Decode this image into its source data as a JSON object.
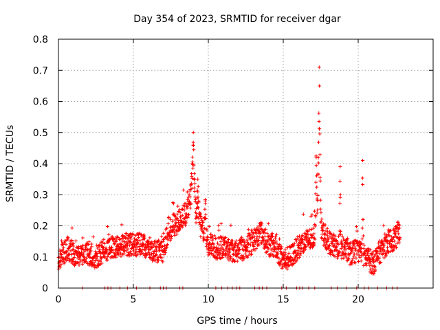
{
  "chart_data": {
    "type": "scatter",
    "title": "Day 354 of 2023, SRMTID for receiver dgar",
    "xlabel": "GPS time / hours",
    "ylabel": "SRMTID / TECUs",
    "xlim": [
      0,
      25
    ],
    "ylim": [
      0,
      0.8
    ],
    "xticks": [
      0,
      5,
      10,
      15,
      20
    ],
    "xtick_labels": [
      "0",
      "5",
      "10",
      "15",
      "20"
    ],
    "yticks": [
      0,
      0.1,
      0.2,
      0.3,
      0.4,
      0.5,
      0.6,
      0.7,
      0.8
    ],
    "ytick_labels": [
      "0",
      "0.1",
      "0.2",
      "0.3",
      "0.4",
      "0.5",
      "0.6",
      "0.7",
      "0.8"
    ],
    "grid": true,
    "marker": "plus",
    "series": [
      {
        "name": "SRMTID",
        "color": "#ff0000",
        "profile": [
          [
            0.0,
            0.09
          ],
          [
            0.3,
            0.11
          ],
          [
            0.6,
            0.13
          ],
          [
            1.0,
            0.11
          ],
          [
            1.5,
            0.1
          ],
          [
            2.0,
            0.11
          ],
          [
            2.5,
            0.1
          ],
          [
            3.0,
            0.12
          ],
          [
            3.5,
            0.13
          ],
          [
            4.0,
            0.13
          ],
          [
            4.5,
            0.14
          ],
          [
            5.0,
            0.14
          ],
          [
            5.5,
            0.14
          ],
          [
            6.0,
            0.13
          ],
          [
            6.5,
            0.12
          ],
          [
            7.0,
            0.12
          ],
          [
            7.3,
            0.18
          ],
          [
            7.6,
            0.2
          ],
          [
            8.0,
            0.21
          ],
          [
            8.5,
            0.24
          ],
          [
            8.9,
            0.3
          ],
          [
            9.3,
            0.22
          ],
          [
            9.7,
            0.18
          ],
          [
            10.0,
            0.14
          ],
          [
            10.5,
            0.13
          ],
          [
            11.0,
            0.13
          ],
          [
            11.5,
            0.12
          ],
          [
            12.0,
            0.12
          ],
          [
            12.5,
            0.13
          ],
          [
            13.0,
            0.15
          ],
          [
            13.5,
            0.18
          ],
          [
            14.0,
            0.14
          ],
          [
            14.5,
            0.13
          ],
          [
            15.0,
            0.09
          ],
          [
            15.5,
            0.1
          ],
          [
            16.0,
            0.13
          ],
          [
            16.5,
            0.15
          ],
          [
            17.0,
            0.16
          ],
          [
            17.3,
            0.22
          ],
          [
            17.6,
            0.18
          ],
          [
            18.0,
            0.15
          ],
          [
            18.5,
            0.13
          ],
          [
            19.0,
            0.13
          ],
          [
            19.5,
            0.11
          ],
          [
            20.0,
            0.12
          ],
          [
            20.5,
            0.1
          ],
          [
            21.0,
            0.08
          ],
          [
            21.5,
            0.12
          ],
          [
            22.0,
            0.15
          ],
          [
            22.5,
            0.16
          ],
          [
            22.8,
            0.19
          ]
        ],
        "spikes": [
          {
            "x": 9.0,
            "peak": 0.5,
            "width": 0.18
          },
          {
            "x": 9.3,
            "peak": 0.35,
            "width": 0.12
          },
          {
            "x": 9.8,
            "peak": 0.28,
            "width": 0.1
          },
          {
            "x": 17.4,
            "peak": 0.71,
            "width": 0.14
          },
          {
            "x": 17.2,
            "peak": 0.42,
            "width": 0.1
          },
          {
            "x": 18.8,
            "peak": 0.39,
            "width": 0.06
          },
          {
            "x": 20.3,
            "peak": 0.41,
            "width": 0.06
          }
        ],
        "zero_points_x": [
          1.6,
          3.1,
          3.3,
          3.5,
          4.1,
          4.6,
          5.2,
          6.1,
          6.8,
          7.0,
          7.2,
          8.1,
          8.3,
          10.5,
          10.9,
          11.3,
          11.6,
          11.9,
          12.1,
          13.1,
          13.4,
          13.6,
          13.9,
          14.9,
          15.2,
          15.9,
          16.1,
          16.3,
          16.7,
          17.1,
          18.2,
          18.6,
          19.2,
          19.9,
          20.4,
          20.7,
          21.3,
          21.9,
          22.3,
          22.6
        ]
      }
    ]
  }
}
